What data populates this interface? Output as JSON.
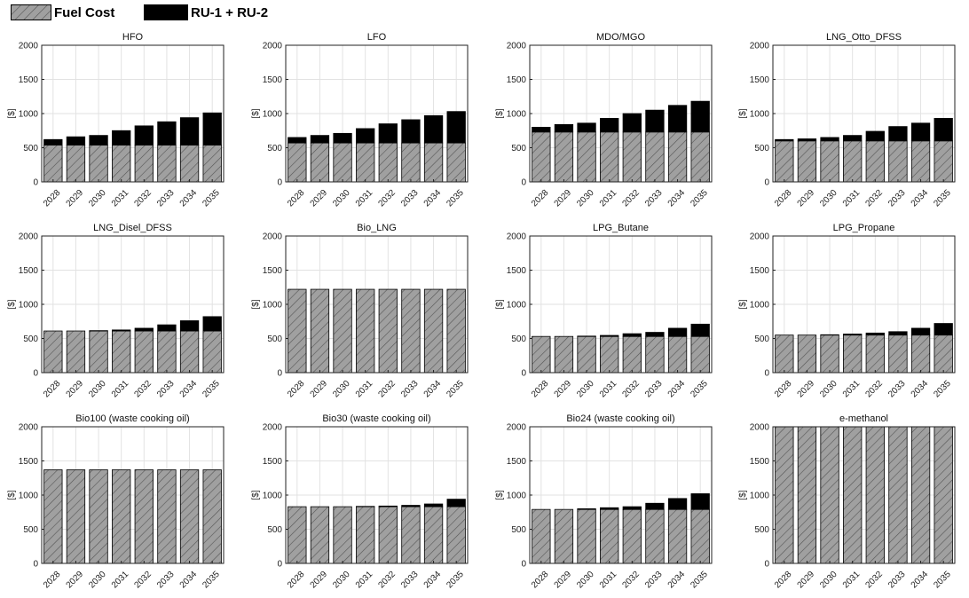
{
  "legend": {
    "fuel_cost_label": "Fuel Cost",
    "ru_label": "RU-1 + RU-2"
  },
  "colors": {
    "fuel_cost_fill": "#a0a0a0",
    "fuel_cost_hatch": "#555555",
    "ru_fill": "#000000",
    "grid": "#e2e2e2"
  },
  "chart_data": [
    {
      "type": "bar",
      "stacked": true,
      "title": "HFO",
      "ylabel": "[$]",
      "ylim": [
        0,
        2000
      ],
      "yticks": [
        0,
        500,
        1000,
        1500,
        2000
      ],
      "grid": true,
      "categories": [
        "2028",
        "2029",
        "2030",
        "2031",
        "2032",
        "2033",
        "2034",
        "2035"
      ],
      "series": [
        {
          "name": "Fuel Cost",
          "values": [
            540,
            540,
            540,
            540,
            540,
            540,
            540,
            540
          ]
        },
        {
          "name": "RU-1 + RU-2",
          "values": [
            80,
            120,
            140,
            210,
            280,
            340,
            400,
            470
          ]
        }
      ]
    },
    {
      "type": "bar",
      "stacked": true,
      "title": "LFO",
      "ylabel": "[$]",
      "ylim": [
        0,
        2000
      ],
      "yticks": [
        0,
        500,
        1000,
        1500,
        2000
      ],
      "grid": true,
      "categories": [
        "2028",
        "2029",
        "2030",
        "2031",
        "2032",
        "2033",
        "2034",
        "2035"
      ],
      "series": [
        {
          "name": "Fuel Cost",
          "values": [
            570,
            570,
            570,
            570,
            570,
            570,
            570,
            570
          ]
        },
        {
          "name": "RU-1 + RU-2",
          "values": [
            80,
            110,
            140,
            210,
            280,
            340,
            400,
            460
          ]
        }
      ]
    },
    {
      "type": "bar",
      "stacked": true,
      "title": "MDO/MGO",
      "ylabel": "[$]",
      "ylim": [
        0,
        2000
      ],
      "yticks": [
        0,
        500,
        1000,
        1500,
        2000
      ],
      "grid": true,
      "categories": [
        "2028",
        "2029",
        "2030",
        "2031",
        "2032",
        "2033",
        "2034",
        "2035"
      ],
      "series": [
        {
          "name": "Fuel Cost",
          "values": [
            730,
            730,
            730,
            730,
            730,
            730,
            730,
            730
          ]
        },
        {
          "name": "RU-1 + RU-2",
          "values": [
            70,
            110,
            130,
            200,
            270,
            320,
            390,
            450
          ]
        }
      ]
    },
    {
      "type": "bar",
      "stacked": true,
      "title": "LNG_Otto_DFSS",
      "ylabel": "[$]",
      "ylim": [
        0,
        2000
      ],
      "yticks": [
        0,
        500,
        1000,
        1500,
        2000
      ],
      "grid": true,
      "categories": [
        "2028",
        "2029",
        "2030",
        "2031",
        "2032",
        "2033",
        "2034",
        "2035"
      ],
      "series": [
        {
          "name": "Fuel Cost",
          "values": [
            600,
            600,
            600,
            600,
            600,
            600,
            600,
            600
          ]
        },
        {
          "name": "RU-1 + RU-2",
          "values": [
            20,
            30,
            50,
            80,
            140,
            210,
            260,
            330
          ]
        }
      ]
    },
    {
      "type": "bar",
      "stacked": true,
      "title": "LNG_Disel_DFSS",
      "ylabel": "[$]",
      "ylim": [
        0,
        2000
      ],
      "yticks": [
        0,
        500,
        1000,
        1500,
        2000
      ],
      "grid": true,
      "categories": [
        "2028",
        "2029",
        "2030",
        "2031",
        "2032",
        "2033",
        "2034",
        "2035"
      ],
      "series": [
        {
          "name": "Fuel Cost",
          "values": [
            610,
            610,
            610,
            610,
            610,
            610,
            610,
            610
          ]
        },
        {
          "name": "RU-1 + RU-2",
          "values": [
            0,
            0,
            5,
            15,
            40,
            90,
            150,
            210
          ]
        }
      ]
    },
    {
      "type": "bar",
      "stacked": true,
      "title": "Bio_LNG",
      "ylabel": "[$]",
      "ylim": [
        0,
        2000
      ],
      "yticks": [
        0,
        500,
        1000,
        1500,
        2000
      ],
      "grid": true,
      "categories": [
        "2028",
        "2029",
        "2030",
        "2031",
        "2032",
        "2033",
        "2034",
        "2035"
      ],
      "series": [
        {
          "name": "Fuel Cost",
          "values": [
            1220,
            1220,
            1220,
            1220,
            1220,
            1220,
            1220,
            1220
          ]
        },
        {
          "name": "RU-1 + RU-2",
          "values": [
            0,
            0,
            0,
            0,
            0,
            0,
            0,
            0
          ]
        }
      ]
    },
    {
      "type": "bar",
      "stacked": true,
      "title": "LPG_Butane",
      "ylabel": "[$]",
      "ylim": [
        0,
        2000
      ],
      "yticks": [
        0,
        500,
        1000,
        1500,
        2000
      ],
      "grid": true,
      "categories": [
        "2028",
        "2029",
        "2030",
        "2031",
        "2032",
        "2033",
        "2034",
        "2035"
      ],
      "series": [
        {
          "name": "Fuel Cost",
          "values": [
            530,
            530,
            530,
            530,
            530,
            530,
            530,
            530
          ]
        },
        {
          "name": "RU-1 + RU-2",
          "values": [
            0,
            0,
            5,
            15,
            40,
            60,
            120,
            180
          ]
        }
      ]
    },
    {
      "type": "bar",
      "stacked": true,
      "title": "LPG_Propane",
      "ylabel": "[$]",
      "ylim": [
        0,
        2000
      ],
      "yticks": [
        0,
        500,
        1000,
        1500,
        2000
      ],
      "grid": true,
      "categories": [
        "2028",
        "2029",
        "2030",
        "2031",
        "2032",
        "2033",
        "2034",
        "2035"
      ],
      "series": [
        {
          "name": "Fuel Cost",
          "values": [
            550,
            550,
            550,
            550,
            550,
            550,
            550,
            550
          ]
        },
        {
          "name": "RU-1 + RU-2",
          "values": [
            0,
            0,
            5,
            15,
            30,
            50,
            100,
            170
          ]
        }
      ]
    },
    {
      "type": "bar",
      "stacked": true,
      "title": "Bio100 (waste cooking oil)",
      "ylabel": "[$]",
      "ylim": [
        0,
        2000
      ],
      "yticks": [
        0,
        500,
        1000,
        1500,
        2000
      ],
      "grid": true,
      "categories": [
        "2028",
        "2029",
        "2030",
        "2031",
        "2032",
        "2033",
        "2034",
        "2035"
      ],
      "series": [
        {
          "name": "Fuel Cost",
          "values": [
            1370,
            1370,
            1370,
            1370,
            1370,
            1370,
            1370,
            1370
          ]
        },
        {
          "name": "RU-1 + RU-2",
          "values": [
            0,
            0,
            0,
            0,
            0,
            0,
            0,
            0
          ]
        }
      ]
    },
    {
      "type": "bar",
      "stacked": true,
      "title": "Bio30 (waste cooking oil)",
      "ylabel": "[$]",
      "ylim": [
        0,
        2000
      ],
      "yticks": [
        0,
        500,
        1000,
        1500,
        2000
      ],
      "grid": true,
      "categories": [
        "2028",
        "2029",
        "2030",
        "2031",
        "2032",
        "2033",
        "2034",
        "2035"
      ],
      "series": [
        {
          "name": "Fuel Cost",
          "values": [
            830,
            830,
            830,
            830,
            830,
            830,
            830,
            830
          ]
        },
        {
          "name": "RU-1 + RU-2",
          "values": [
            0,
            0,
            0,
            5,
            10,
            20,
            40,
            110
          ]
        }
      ]
    },
    {
      "type": "bar",
      "stacked": true,
      "title": "Bio24 (waste cooking oil)",
      "ylabel": "[$]",
      "ylim": [
        0,
        2000
      ],
      "yticks": [
        0,
        500,
        1000,
        1500,
        2000
      ],
      "grid": true,
      "categories": [
        "2028",
        "2029",
        "2030",
        "2031",
        "2032",
        "2033",
        "2034",
        "2035"
      ],
      "series": [
        {
          "name": "Fuel Cost",
          "values": [
            790,
            790,
            790,
            790,
            790,
            790,
            790,
            790
          ]
        },
        {
          "name": "RU-1 + RU-2",
          "values": [
            0,
            0,
            10,
            25,
            40,
            90,
            160,
            230
          ]
        }
      ]
    },
    {
      "type": "bar",
      "stacked": true,
      "title": "e-methanol",
      "ylabel": "[$]",
      "ylim": [
        0,
        2000
      ],
      "yticks": [
        0,
        500,
        1000,
        1500,
        2000
      ],
      "grid": true,
      "categories": [
        "2028",
        "2029",
        "2030",
        "2031",
        "2032",
        "2033",
        "2034",
        "2035"
      ],
      "series": [
        {
          "name": "Fuel Cost",
          "values": [
            2000,
            2000,
            2000,
            2000,
            2000,
            2000,
            2000,
            2000
          ]
        },
        {
          "name": "RU-1 + RU-2",
          "values": [
            0,
            0,
            0,
            0,
            0,
            0,
            0,
            0
          ]
        }
      ]
    }
  ]
}
